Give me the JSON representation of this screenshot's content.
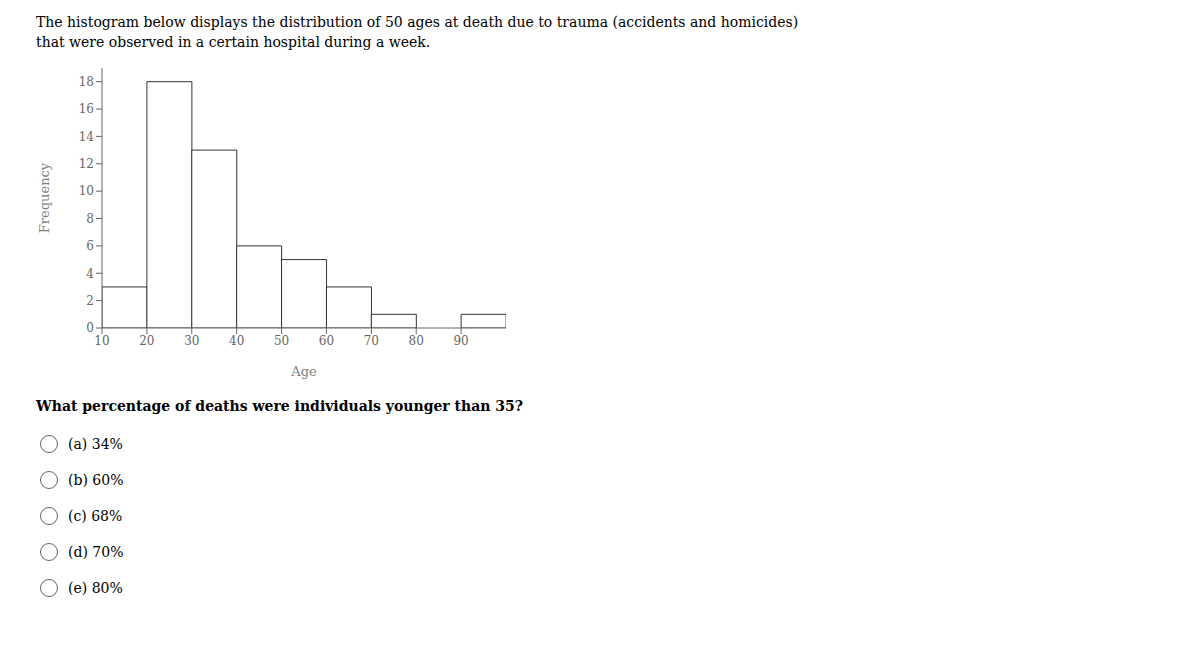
{
  "chart_data": {
    "type": "histogram",
    "title": "The histogram below displays the distribution of 50 ages at death due to trauma (accidents and homicides)",
    "subtitle": "that were observed in a certain hospital during a week.",
    "x_label": "Age",
    "y_label": "Frequency",
    "bins": [
      10,
      20,
      30,
      40,
      50,
      60,
      70,
      80,
      90,
      100
    ],
    "values": [
      3,
      18,
      13,
      6,
      5,
      3,
      1,
      0,
      1
    ],
    "xlim": [
      10,
      100
    ],
    "xticks": [
      10,
      20,
      30,
      40,
      50,
      60,
      70,
      80,
      90
    ],
    "ylim": [
      0,
      19
    ],
    "yticks": [
      0,
      2,
      4,
      6,
      8,
      10,
      12,
      14,
      16,
      18
    ],
    "color": "#ffffff",
    "edge_color": "#333333",
    "grid": false,
    "annotations": [
      "What percentage of deaths were individuals younger than 35?",
      "(a) 34%",
      "(b) 60%",
      "(c) 68%",
      "(d) 70%",
      "(e) 80%"
    ]
  }
}
